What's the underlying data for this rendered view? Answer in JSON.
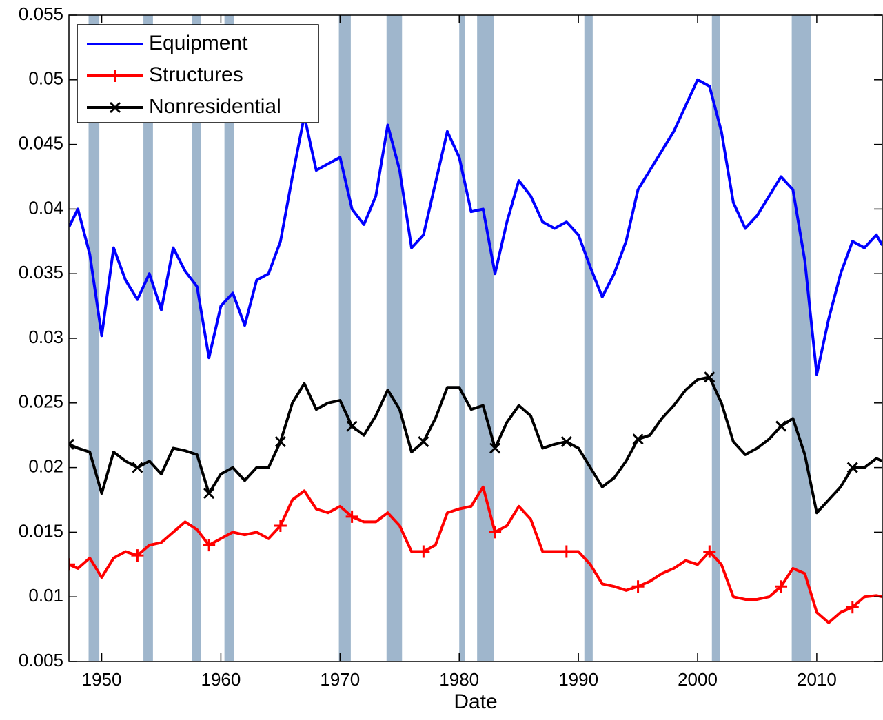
{
  "chart_data": {
    "type": "line",
    "xlabel": "Date",
    "xlim": [
      1947.25,
      2015.5
    ],
    "xticks": [
      1950,
      1960,
      1970,
      1980,
      1990,
      2000,
      2010
    ],
    "ylim": [
      0.005,
      0.055
    ],
    "yticks": [
      0.005,
      0.01,
      0.015,
      0.02,
      0.025,
      0.03,
      0.035,
      0.04,
      0.045,
      0.05,
      0.055
    ],
    "grid": false,
    "legend": "upper left",
    "shaded_color": "#9fb6cc",
    "shaded_regions": [
      [
        1948.9,
        1949.8
      ],
      [
        1953.5,
        1954.3
      ],
      [
        1957.6,
        1958.3
      ],
      [
        1960.3,
        1961.1
      ],
      [
        1969.9,
        1970.9
      ],
      [
        1973.9,
        1975.2
      ],
      [
        1980.0,
        1980.5
      ],
      [
        1981.5,
        1982.9
      ],
      [
        1990.5,
        1991.2
      ],
      [
        2001.2,
        2001.9
      ],
      [
        2007.9,
        2009.5
      ]
    ],
    "x": [
      1947.25,
      1948,
      1949,
      1950,
      1951,
      1952,
      1953,
      1954,
      1955,
      1956,
      1957,
      1958,
      1959,
      1960,
      1961,
      1962,
      1963,
      1964,
      1965,
      1966,
      1967,
      1968,
      1969,
      1970,
      1971,
      1972,
      1973,
      1974,
      1975,
      1976,
      1977,
      1978,
      1979,
      1980,
      1981,
      1982,
      1983,
      1984,
      1985,
      1986,
      1987,
      1988,
      1989,
      1990,
      1991,
      1992,
      1993,
      1994,
      1995,
      1996,
      1997,
      1998,
      1999,
      2000,
      2001,
      2002,
      2003,
      2004,
      2005,
      2006,
      2007,
      2008,
      2009,
      2010,
      2011,
      2012,
      2013,
      2014,
      2015,
      2015.5
    ],
    "series": [
      {
        "name": "Equipment",
        "color": "#0000ff",
        "marker": "none",
        "values": [
          0.0386,
          0.04,
          0.0365,
          0.0302,
          0.037,
          0.0345,
          0.033,
          0.035,
          0.0322,
          0.037,
          0.0352,
          0.034,
          0.0285,
          0.0325,
          0.0335,
          0.031,
          0.0345,
          0.035,
          0.0375,
          0.0425,
          0.0472,
          0.043,
          0.0435,
          0.044,
          0.04,
          0.0388,
          0.041,
          0.0465,
          0.043,
          0.037,
          0.038,
          0.042,
          0.046,
          0.044,
          0.0398,
          0.04,
          0.035,
          0.039,
          0.0422,
          0.041,
          0.039,
          0.0385,
          0.039,
          0.038,
          0.0355,
          0.0332,
          0.035,
          0.0375,
          0.0415,
          0.043,
          0.0445,
          0.046,
          0.048,
          0.05,
          0.0495,
          0.046,
          0.0405,
          0.0385,
          0.0395,
          0.041,
          0.0425,
          0.0415,
          0.036,
          0.0272,
          0.0315,
          0.035,
          0.0375,
          0.037,
          0.038,
          0.0372
        ]
      },
      {
        "name": "Structures",
        "color": "#ff0000",
        "marker": "+",
        "values": [
          0.0125,
          0.0122,
          0.013,
          0.0115,
          0.013,
          0.0135,
          0.0132,
          0.014,
          0.0142,
          0.015,
          0.0158,
          0.0152,
          0.014,
          0.0145,
          0.015,
          0.0148,
          0.015,
          0.0145,
          0.0155,
          0.0175,
          0.0182,
          0.0168,
          0.0165,
          0.017,
          0.0162,
          0.0158,
          0.0158,
          0.0165,
          0.0155,
          0.0135,
          0.0135,
          0.014,
          0.0165,
          0.0168,
          0.017,
          0.0185,
          0.015,
          0.0155,
          0.017,
          0.016,
          0.0135,
          0.0135,
          0.0135,
          0.0135,
          0.0125,
          0.011,
          0.0108,
          0.0105,
          0.0108,
          0.0112,
          0.0118,
          0.0122,
          0.0128,
          0.0125,
          0.0135,
          0.0125,
          0.01,
          0.0098,
          0.0098,
          0.01,
          0.0108,
          0.0122,
          0.0118,
          0.0088,
          0.008,
          0.0088,
          0.0092,
          0.01,
          0.0101,
          0.01
        ]
      },
      {
        "name": "Nonresidential",
        "color": "#000000",
        "marker": "x",
        "values": [
          0.0218,
          0.0215,
          0.0212,
          0.018,
          0.0212,
          0.0205,
          0.02,
          0.0205,
          0.0195,
          0.0215,
          0.0213,
          0.021,
          0.018,
          0.0195,
          0.02,
          0.019,
          0.02,
          0.02,
          0.022,
          0.025,
          0.0265,
          0.0245,
          0.025,
          0.0252,
          0.0232,
          0.0225,
          0.024,
          0.026,
          0.0245,
          0.0212,
          0.022,
          0.0238,
          0.0262,
          0.0262,
          0.0245,
          0.0248,
          0.0215,
          0.0235,
          0.0248,
          0.024,
          0.0215,
          0.0218,
          0.022,
          0.0215,
          0.02,
          0.0185,
          0.0192,
          0.0205,
          0.0222,
          0.0225,
          0.0238,
          0.0248,
          0.026,
          0.0268,
          0.027,
          0.025,
          0.022,
          0.021,
          0.0215,
          0.0222,
          0.0232,
          0.0238,
          0.021,
          0.0165,
          0.0175,
          0.0185,
          0.02,
          0.02,
          0.0207,
          0.0205
        ]
      }
    ]
  }
}
